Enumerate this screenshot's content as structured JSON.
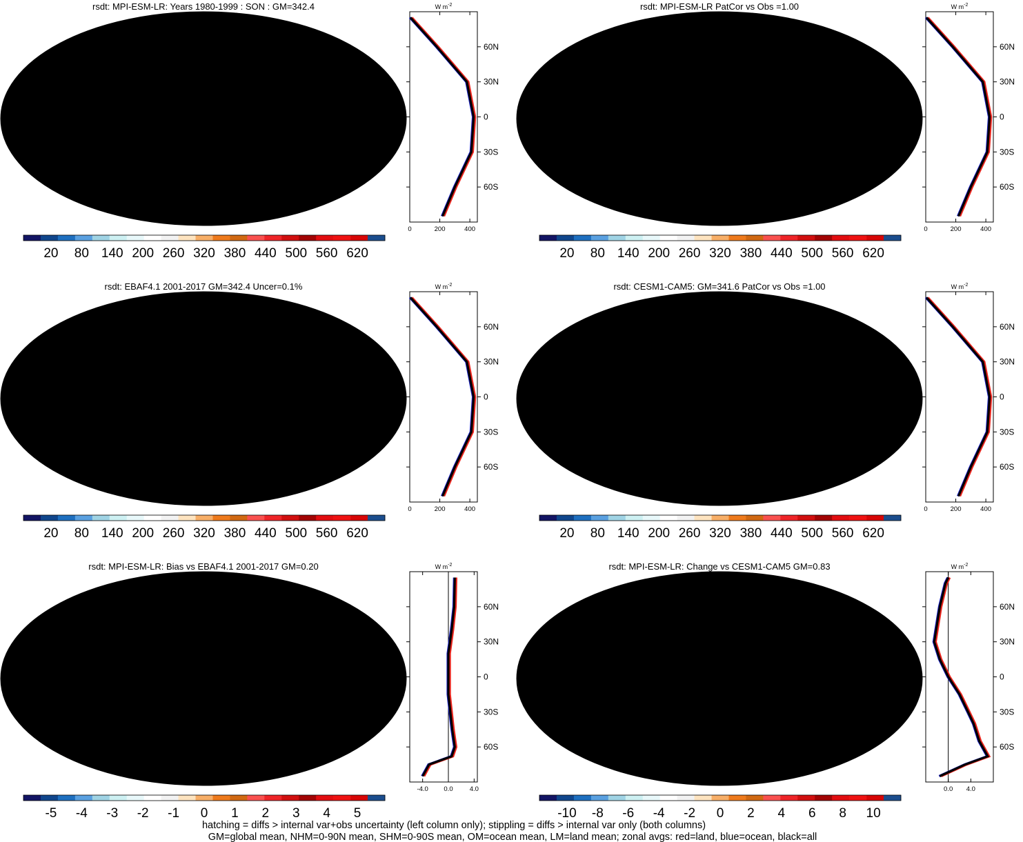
{
  "colors": {
    "levels": [
      "#131564",
      "#10468c",
      "#1e6fbf",
      "#5aa0e0",
      "#9fd3e4",
      "#cdf0f2",
      "#e8f8fa",
      "#ffffff",
      "#f2f2f2",
      "#fde3bf",
      "#f7ae67",
      "#ee7a1c",
      "#d06812",
      "#f9514f",
      "#ee2428",
      "#d10f0f",
      "#a20404",
      "#e20d10",
      "#ef1212",
      "#d70606",
      "#1b4d8d"
    ],
    "continent_outline": "#000000",
    "grid": "#cfcfcf",
    "zonal_all": "#000000",
    "zonal_land": "#e8241c",
    "zonal_ocean": "#1a22c9"
  },
  "chart_data": [
    {
      "type": "heatmap",
      "panel": "top-left",
      "title": "rsdt: MPI-ESM-LR: Years 1980-1999 : SON : GM=342.4",
      "field": "rsdt",
      "units": "W m-2",
      "global_mean": 342.4,
      "overlays": [
        "hatching",
        "stippling"
      ],
      "zonal_latitude": [
        -85,
        -60,
        -30,
        0,
        30,
        60,
        85
      ],
      "zonal_values": [
        218,
        300,
        410,
        425,
        380,
        180,
        5
      ],
      "zonal_xlim": [
        0,
        450
      ],
      "zonal_xticks": [
        "0",
        "200",
        "400"
      ],
      "lat_ticks": [
        "60N",
        "30N",
        "0",
        "30S",
        "60S"
      ],
      "zonal_units_label": "W m",
      "colorbar_ticks": [
        "20",
        "80",
        "140",
        "200",
        "260",
        "320",
        "380",
        "440",
        "500",
        "560",
        "620"
      ]
    },
    {
      "type": "heatmap",
      "panel": "top-right",
      "title": "rsdt: MPI-ESM-LR PatCor vs Obs =1.00",
      "field": "rsdt",
      "units": "W m-2",
      "pattern_correlation": 1.0,
      "zonal_latitude": [
        -85,
        -60,
        -30,
        0,
        30,
        60,
        85
      ],
      "zonal_values": [
        218,
        300,
        410,
        425,
        380,
        180,
        5
      ],
      "zonal_xlim": [
        0,
        450
      ],
      "zonal_xticks": [
        "0",
        "200",
        "400"
      ],
      "lat_ticks": [
        "60N",
        "30N",
        "0",
        "30S",
        "60S"
      ],
      "zonal_units_label": "W m",
      "colorbar_ticks": [
        "20",
        "80",
        "140",
        "200",
        "260",
        "320",
        "380",
        "440",
        "500",
        "560",
        "620"
      ]
    },
    {
      "type": "heatmap",
      "panel": "middle-left",
      "title": "rsdt: EBAF4.1 2001-2017 GM=342.4 Uncer=0.1%",
      "field": "rsdt",
      "units": "W m-2",
      "global_mean": 342.4,
      "uncertainty_percent": 0.1,
      "overlays": [
        "hatching",
        "stippling"
      ],
      "zonal_latitude": [
        -85,
        -60,
        -30,
        0,
        30,
        60,
        85
      ],
      "zonal_values": [
        218,
        300,
        410,
        425,
        380,
        180,
        5
      ],
      "zonal_xlim": [
        0,
        450
      ],
      "zonal_xticks": [
        "0",
        "200",
        "400"
      ],
      "lat_ticks": [
        "60N",
        "30N",
        "0",
        "30S",
        "60S"
      ],
      "zonal_units_label": "W m",
      "colorbar_ticks": [
        "20",
        "80",
        "140",
        "200",
        "260",
        "320",
        "380",
        "440",
        "500",
        "560",
        "620"
      ]
    },
    {
      "type": "heatmap",
      "panel": "middle-right",
      "title": "rsdt: CESM1-CAM5: GM=341.6 PatCor vs Obs =1.00",
      "field": "rsdt",
      "units": "W m-2",
      "global_mean": 341.6,
      "pattern_correlation": 1.0,
      "zonal_latitude": [
        -85,
        -60,
        -30,
        0,
        30,
        60,
        85
      ],
      "zonal_values": [
        218,
        300,
        410,
        425,
        380,
        180,
        5
      ],
      "zonal_xlim": [
        0,
        450
      ],
      "zonal_xticks": [
        "0",
        "200",
        "400"
      ],
      "lat_ticks": [
        "60N",
        "30N",
        "0",
        "30S",
        "60S"
      ],
      "zonal_units_label": "W m",
      "colorbar_ticks": [
        "20",
        "80",
        "140",
        "200",
        "260",
        "320",
        "380",
        "440",
        "500",
        "560",
        "620"
      ]
    },
    {
      "type": "heatmap",
      "panel": "bottom-left",
      "title": "rsdt: MPI-ESM-LR: Bias vs EBAF4.1 2001-2017  GM=0.20",
      "field": "rsdt bias",
      "units": "W m-2",
      "global_mean": 0.2,
      "overlays": [
        "hatching",
        "stippling"
      ],
      "zonal_latitude": [
        -85,
        -75,
        -68,
        -60,
        -45,
        -30,
        -15,
        0,
        20,
        40,
        60,
        85
      ],
      "zonal_values": [
        -4.0,
        -3.0,
        0.5,
        1.0,
        0.6,
        0.3,
        0.0,
        0.0,
        0.0,
        0.5,
        0.9,
        1.0
      ],
      "zonal_xlim": [
        -6,
        4.5
      ],
      "zonal_xticks": [
        "-4.0",
        "0.0",
        "4.0"
      ],
      "lat_ticks": [
        "60N",
        "30N",
        "0",
        "30S",
        "60S"
      ],
      "zonal_units_label": "W m",
      "colorbar_ticks": [
        "-5",
        "-4",
        "-3",
        "-2",
        "-1",
        "0",
        "1",
        "2",
        "3",
        "4",
        "5"
      ]
    },
    {
      "type": "heatmap",
      "panel": "bottom-right",
      "title": "rsdt: MPI-ESM-LR: Change vs CESM1-CAM5 GM=0.83",
      "field": "rsdt change",
      "units": "W m-2",
      "global_mean": 0.83,
      "zonal_latitude": [
        -85,
        -75,
        -68,
        -55,
        -40,
        -30,
        -15,
        0,
        15,
        30,
        60,
        80,
        85
      ],
      "zonal_values": [
        -1.5,
        3.0,
        7.0,
        5.5,
        4.5,
        3.5,
        2.0,
        0.0,
        -1.5,
        -2.5,
        -1.5,
        -0.5,
        0.0
      ],
      "zonal_xlim": [
        -4,
        8
      ],
      "zonal_xticks": [
        "0.0",
        "4.0"
      ],
      "lat_ticks": [
        "60N",
        "30N",
        "0",
        "30S",
        "60S"
      ],
      "zonal_units_label": "W m",
      "colorbar_ticks": [
        "-10",
        "-8",
        "-6",
        "-4",
        "-2",
        "0",
        "2",
        "4",
        "6",
        "8",
        "10"
      ]
    }
  ],
  "footer": {
    "line1": "hatching = diffs > internal var+obs uncertainty (left column only); stippling = diffs > internal var only (both columns)",
    "line2": "GM=global mean, NHM=0-90N mean, SHM=0-90S mean, OM=ocean mean, LM=land mean; zonal avgs: red=land, blue=ocean, black=all"
  }
}
